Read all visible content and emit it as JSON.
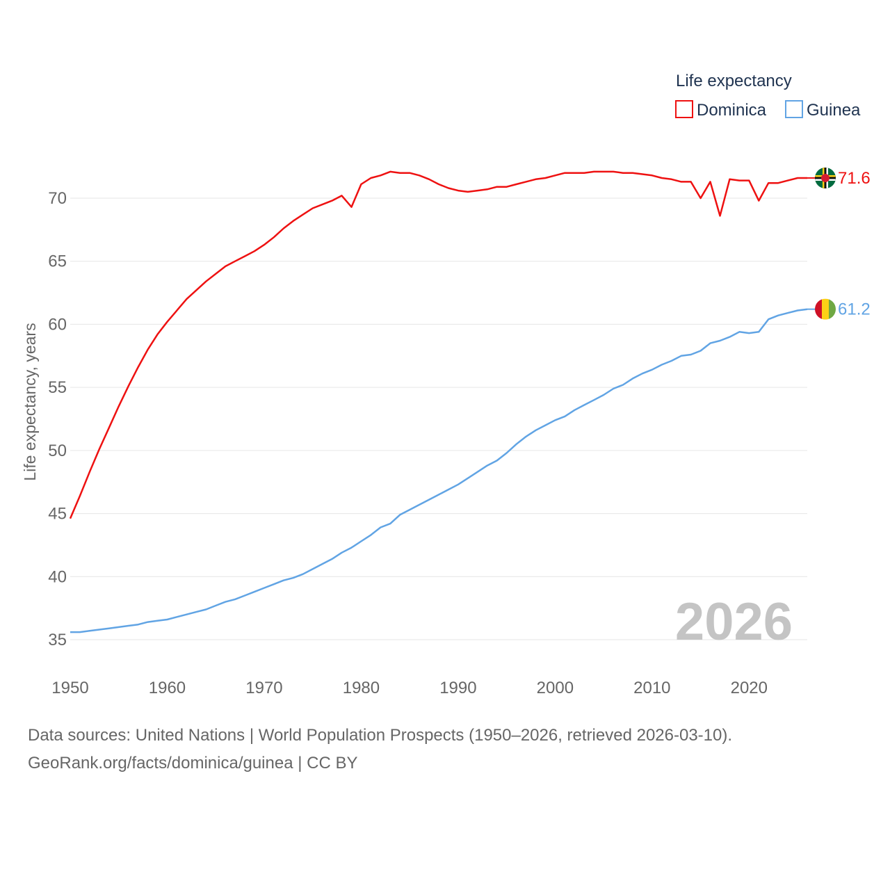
{
  "chart_data": {
    "type": "line",
    "title": "Life expectancy",
    "ylabel": "Life expectancy, years",
    "xlabel": "",
    "xlim": [
      1950,
      2026
    ],
    "ylim": [
      33,
      73.5
    ],
    "x_ticks": [
      1950,
      1960,
      1970,
      1980,
      1990,
      2000,
      2010,
      2020
    ],
    "y_ticks": [
      35,
      40,
      45,
      50,
      55,
      60,
      65,
      70
    ],
    "year_label": "2026",
    "x": [
      1950,
      1951,
      1952,
      1953,
      1954,
      1955,
      1956,
      1957,
      1958,
      1959,
      1960,
      1961,
      1962,
      1963,
      1964,
      1965,
      1966,
      1967,
      1968,
      1969,
      1970,
      1971,
      1972,
      1973,
      1974,
      1975,
      1976,
      1977,
      1978,
      1979,
      1980,
      1981,
      1982,
      1983,
      1984,
      1985,
      1986,
      1987,
      1988,
      1989,
      1990,
      1991,
      1992,
      1993,
      1994,
      1995,
      1996,
      1997,
      1998,
      1999,
      2000,
      2001,
      2002,
      2003,
      2004,
      2005,
      2006,
      2007,
      2008,
      2009,
      2010,
      2011,
      2012,
      2013,
      2014,
      2015,
      2016,
      2017,
      2018,
      2019,
      2020,
      2021,
      2022,
      2023,
      2024,
      2025,
      2026
    ],
    "series": [
      {
        "name": "Dominica",
        "color": "#ee1111",
        "end_label": "71.6",
        "flag": "dominica-flag",
        "values": [
          44.6,
          46.4,
          48.3,
          50.1,
          51.8,
          53.5,
          55.1,
          56.6,
          58.0,
          59.2,
          60.2,
          61.1,
          62.0,
          62.7,
          63.4,
          64.0,
          64.6,
          65.0,
          65.4,
          65.8,
          66.3,
          66.9,
          67.6,
          68.2,
          68.7,
          69.2,
          69.5,
          69.8,
          70.2,
          69.3,
          71.1,
          71.6,
          71.8,
          72.1,
          72.0,
          72.0,
          71.8,
          71.5,
          71.1,
          70.8,
          70.6,
          70.5,
          70.6,
          70.7,
          70.9,
          70.9,
          71.1,
          71.3,
          71.5,
          71.6,
          71.8,
          72.0,
          72.0,
          72.0,
          72.1,
          72.1,
          72.1,
          72.0,
          72.0,
          71.9,
          71.8,
          71.6,
          71.5,
          71.3,
          71.3,
          70.0,
          71.3,
          68.6,
          71.5,
          71.4,
          71.4,
          69.8,
          71.2,
          71.2,
          71.4,
          71.6,
          71.6
        ]
      },
      {
        "name": "Guinea",
        "color": "#61a4e4",
        "end_label": "61.2",
        "flag": "guinea-flag",
        "values": [
          35.6,
          35.6,
          35.7,
          35.8,
          35.9,
          36.0,
          36.1,
          36.2,
          36.4,
          36.5,
          36.6,
          36.8,
          37.0,
          37.2,
          37.4,
          37.7,
          38.0,
          38.2,
          38.5,
          38.8,
          39.1,
          39.4,
          39.7,
          39.9,
          40.2,
          40.6,
          41.0,
          41.4,
          41.9,
          42.3,
          42.8,
          43.3,
          43.9,
          44.2,
          44.9,
          45.3,
          45.7,
          46.1,
          46.5,
          46.9,
          47.3,
          47.8,
          48.3,
          48.8,
          49.2,
          49.8,
          50.5,
          51.1,
          51.6,
          52.0,
          52.4,
          52.7,
          53.2,
          53.6,
          54.0,
          54.4,
          54.9,
          55.2,
          55.7,
          56.1,
          56.4,
          56.8,
          57.1,
          57.5,
          57.6,
          57.9,
          58.5,
          58.7,
          59.0,
          59.4,
          59.3,
          59.4,
          60.4,
          60.7,
          60.9,
          61.1,
          61.2
        ]
      }
    ]
  },
  "footer": {
    "line1": "Data sources: United Nations | World Population Prospects (1950–2026, retrieved 2026-03-10).",
    "line2": "GeoRank.org/facts/dominica/guinea | CC BY"
  }
}
